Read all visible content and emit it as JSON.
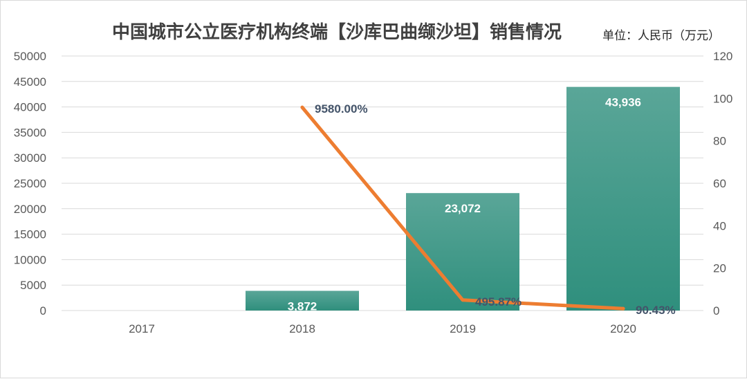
{
  "chart_data": {
    "type": "bar+line",
    "title": "中国城市公立医疗机构终端【沙库巴曲缬沙坦】销售情况",
    "unit": "单位：人民币（万元）",
    "categories": [
      "2017",
      "2018",
      "2019",
      "2020"
    ],
    "series": [
      {
        "type": "bar",
        "axis": "left",
        "values": [
          0,
          3872,
          23072,
          43936
        ],
        "labels": [
          "",
          "3,872",
          "23,072",
          "43,936"
        ],
        "color": "#3a9e8c"
      },
      {
        "type": "line",
        "axis": "right",
        "values": [
          null,
          95.8,
          4.9587,
          0.9043
        ],
        "labels": [
          "",
          "9580.00%",
          "495.87%",
          "90.43%"
        ],
        "color": "#ed7d31"
      }
    ],
    "y_left": {
      "min": 0,
      "max": 50000,
      "ticks": [
        "0",
        "5000",
        "10000",
        "15000",
        "20000",
        "25000",
        "30000",
        "35000",
        "40000",
        "45000",
        "50000"
      ]
    },
    "y_right": {
      "min": 0,
      "max": 120,
      "ticks": [
        "0",
        "20",
        "40",
        "60",
        "80",
        "100",
        "120"
      ]
    },
    "grid": true,
    "legend": "none"
  }
}
